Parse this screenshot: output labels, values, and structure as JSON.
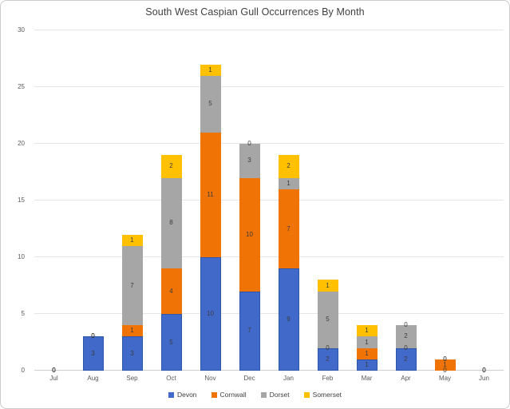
{
  "chart_data": {
    "type": "bar",
    "stacked": true,
    "title": "South West Caspian Gull Occurrences By Month",
    "categories": [
      "Jul",
      "Aug",
      "Sep",
      "Oct",
      "Nov",
      "Dec",
      "Jan",
      "Feb",
      "Mar",
      "Apr",
      "May",
      "Jun"
    ],
    "series": [
      {
        "name": "Devon",
        "color": "#4169C9",
        "border_color": "#2E55A8",
        "values": [
          0,
          3,
          3,
          5,
          10,
          7,
          9,
          2,
          1,
          2,
          0,
          0
        ]
      },
      {
        "name": "Cornwall",
        "color": "#F07306",
        "border_color": "",
        "values": [
          0,
          0,
          1,
          4,
          11,
          10,
          7,
          0,
          1,
          0,
          1,
          0
        ]
      },
      {
        "name": "Dorset",
        "color": "#A6A6A6",
        "border_color": "",
        "values": [
          0,
          0,
          7,
          8,
          5,
          3,
          1,
          5,
          1,
          2,
          0,
          0
        ]
      },
      {
        "name": "Somerset",
        "color": "#FFC000",
        "border_color": "",
        "values": [
          0,
          0,
          1,
          2,
          1,
          0,
          2,
          1,
          1,
          0,
          0,
          0
        ]
      }
    ],
    "totals": [
      0,
      3,
      12,
      19,
      27,
      20,
      19,
      8,
      4,
      4,
      1,
      0
    ],
    "xlabel": "",
    "ylabel": "",
    "ylim": [
      0,
      30
    ],
    "y_ticks": [
      0,
      5,
      10,
      15,
      20,
      25,
      30
    ],
    "grid": true,
    "data_labels": true,
    "legend_position": "bottom"
  },
  "styles": {
    "gridline_color": "#e4e4e4",
    "axis_line_color": "#cfcfcf",
    "label_color": "#3c3c3c",
    "tick_color": "#595959",
    "title_color": "#3f3f3f",
    "background": "#ffffff"
  }
}
